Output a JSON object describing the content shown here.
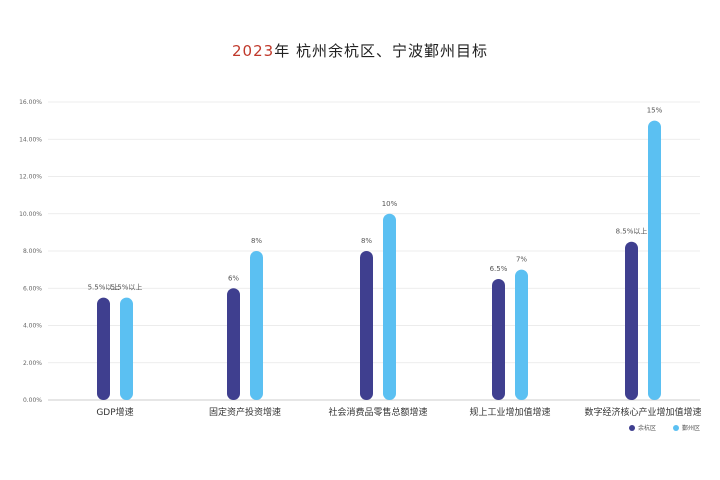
{
  "title": {
    "year": "2023",
    "rest": "年 杭州余杭区、宁波鄞州目标"
  },
  "chart_data": {
    "type": "bar",
    "title": "2023年 杭州余杭区、宁波鄞州目标",
    "categories": [
      "GDP增速",
      "固定资产投资增速",
      "社会消费品零售总额增速",
      "规上工业增加值增速",
      "数字经济核心产业增加值增速"
    ],
    "series": [
      {
        "name": "余杭区",
        "color": "#3f3f8f",
        "values": [
          5.5,
          6,
          8,
          6.5,
          8.5
        ],
        "labels": [
          "5.5%以上",
          "6%",
          "8%",
          "6.5%",
          "8.5%以上"
        ]
      },
      {
        "name": "鄞州区",
        "color": "#5bc0f2",
        "values": [
          5.5,
          8,
          10,
          7,
          15
        ],
        "labels": [
          "5.5%以上",
          "8%",
          "10%",
          "7%",
          "15%"
        ]
      }
    ],
    "ylim": [
      0,
      16
    ],
    "yticks": [
      "0.00%",
      "2.00%",
      "4.00%",
      "6.00%",
      "8.00%",
      "10.00%",
      "12.00%",
      "14.00%",
      "16.00%"
    ],
    "grid": true,
    "legend_position": "bottom-right"
  }
}
